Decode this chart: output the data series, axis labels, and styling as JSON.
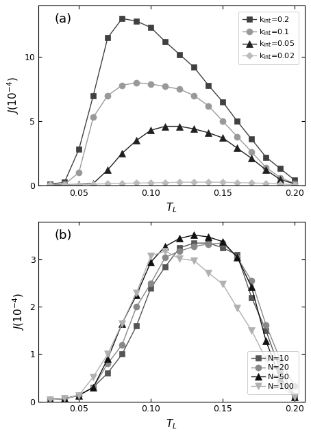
{
  "panel_a": {
    "title": "(a)",
    "series": [
      {
        "label": "k$_{\\rm int}$=0.2",
        "color": "#404040",
        "marker": "s",
        "markersize": 5.5,
        "linewidth": 1.0,
        "x": [
          0.03,
          0.04,
          0.05,
          0.06,
          0.07,
          0.08,
          0.09,
          0.1,
          0.11,
          0.12,
          0.13,
          0.14,
          0.15,
          0.16,
          0.17,
          0.18,
          0.19,
          0.2
        ],
        "y": [
          0.08,
          0.25,
          2.8,
          7.0,
          11.5,
          13.0,
          12.8,
          12.3,
          11.2,
          10.2,
          9.2,
          7.8,
          6.5,
          5.0,
          3.6,
          2.2,
          1.3,
          0.4
        ]
      },
      {
        "label": "k$_{\\rm int}$=0.1",
        "color": "#999999",
        "marker": "o",
        "markersize": 6.5,
        "linewidth": 1.0,
        "x": [
          0.03,
          0.04,
          0.05,
          0.06,
          0.07,
          0.08,
          0.09,
          0.1,
          0.11,
          0.12,
          0.13,
          0.14,
          0.15,
          0.16,
          0.17,
          0.18,
          0.19,
          0.2
        ],
        "y": [
          0.05,
          0.08,
          1.0,
          5.3,
          7.0,
          7.8,
          8.0,
          7.9,
          7.7,
          7.5,
          7.0,
          6.2,
          5.0,
          3.8,
          2.6,
          1.4,
          0.6,
          0.15
        ]
      },
      {
        "label": "k$_{\\rm int}$=0.05",
        "color": "#202020",
        "marker": "^",
        "markersize": 6.5,
        "linewidth": 1.0,
        "x": [
          0.03,
          0.04,
          0.05,
          0.06,
          0.07,
          0.08,
          0.09,
          0.1,
          0.11,
          0.12,
          0.13,
          0.14,
          0.15,
          0.16,
          0.17,
          0.18,
          0.19,
          0.2
        ],
        "y": [
          0.04,
          0.06,
          0.08,
          0.15,
          1.2,
          2.5,
          3.5,
          4.3,
          4.6,
          4.6,
          4.4,
          4.1,
          3.7,
          2.9,
          2.1,
          1.2,
          0.45,
          0.12
        ]
      },
      {
        "label": "k$_{\\rm int}$=0.02",
        "color": "#bbbbbb",
        "marker": "D",
        "markersize": 5.5,
        "linewidth": 1.0,
        "x": [
          0.03,
          0.04,
          0.05,
          0.06,
          0.07,
          0.08,
          0.09,
          0.1,
          0.11,
          0.12,
          0.13,
          0.14,
          0.15,
          0.16,
          0.17,
          0.18,
          0.19,
          0.2
        ],
        "y": [
          0.04,
          0.05,
          0.07,
          0.1,
          0.13,
          0.16,
          0.18,
          0.2,
          0.22,
          0.24,
          0.25,
          0.25,
          0.24,
          0.22,
          0.19,
          0.16,
          0.11,
          0.06
        ]
      }
    ],
    "ylim": [
      0,
      14
    ],
    "xlim": [
      0.022,
      0.207
    ],
    "yticks": [
      0,
      5,
      10
    ],
    "ytick_labels": [
      "0",
      "5",
      "10"
    ],
    "xticks": [
      0.05,
      0.1,
      0.15,
      0.2
    ],
    "xtick_labels": [
      "0.05",
      "0.10",
      "0.15",
      "0.20"
    ]
  },
  "panel_b": {
    "title": "(b)",
    "series": [
      {
        "label": "N=10",
        "color": "#555555",
        "marker": "s",
        "markersize": 5.5,
        "linewidth": 1.0,
        "x": [
          0.03,
          0.04,
          0.05,
          0.06,
          0.07,
          0.08,
          0.09,
          0.1,
          0.11,
          0.12,
          0.13,
          0.14,
          0.15,
          0.16,
          0.17,
          0.18,
          0.19,
          0.2
        ],
        "y": [
          0.04,
          0.06,
          0.13,
          0.3,
          0.6,
          1.0,
          1.6,
          2.4,
          2.85,
          3.25,
          3.35,
          3.35,
          3.25,
          3.1,
          2.2,
          1.5,
          0.65,
          0.13
        ]
      },
      {
        "label": "N=20",
        "color": "#888888",
        "marker": "o",
        "markersize": 6.5,
        "linewidth": 1.0,
        "x": [
          0.03,
          0.04,
          0.05,
          0.06,
          0.07,
          0.08,
          0.09,
          0.1,
          0.11,
          0.12,
          0.13,
          0.14,
          0.15,
          0.16,
          0.17,
          0.18,
          0.19,
          0.2
        ],
        "y": [
          0.04,
          0.06,
          0.13,
          0.3,
          0.8,
          1.2,
          2.0,
          2.5,
          3.05,
          3.18,
          3.28,
          3.33,
          3.35,
          3.05,
          2.55,
          1.62,
          0.88,
          0.32
        ]
      },
      {
        "label": "N=50",
        "color": "#111111",
        "marker": "^",
        "markersize": 6.5,
        "linewidth": 1.0,
        "x": [
          0.03,
          0.04,
          0.05,
          0.06,
          0.07,
          0.08,
          0.09,
          0.1,
          0.11,
          0.12,
          0.13,
          0.14,
          0.15,
          0.16,
          0.17,
          0.18,
          0.19,
          0.2
        ],
        "y": [
          0.04,
          0.06,
          0.13,
          0.3,
          0.9,
          1.65,
          2.25,
          2.95,
          3.28,
          3.45,
          3.52,
          3.48,
          3.38,
          3.05,
          2.42,
          1.28,
          0.48,
          0.09
        ]
      },
      {
        "label": "N=100",
        "color": "#b0b0b0",
        "marker": "v",
        "markersize": 6.5,
        "linewidth": 1.0,
        "x": [
          0.03,
          0.04,
          0.05,
          0.06,
          0.07,
          0.08,
          0.09,
          0.1,
          0.11,
          0.12,
          0.13,
          0.14,
          0.15,
          0.16,
          0.17,
          0.18,
          0.19,
          0.2
        ],
        "y": [
          0.04,
          0.06,
          0.13,
          0.52,
          1.0,
          1.65,
          2.3,
          3.08,
          3.18,
          3.02,
          2.98,
          2.72,
          2.48,
          1.98,
          1.5,
          0.9,
          0.33,
          0.09
        ]
      }
    ],
    "ylim": [
      0,
      3.8
    ],
    "xlim": [
      0.022,
      0.207
    ],
    "yticks": [
      0,
      1,
      2,
      3
    ],
    "ytick_labels": [
      "0",
      "1",
      "2",
      "3"
    ],
    "xticks": [
      0.05,
      0.1,
      0.15,
      0.2
    ],
    "xtick_labels": [
      "0.05",
      "0.10",
      "0.15",
      "0.20"
    ]
  },
  "xlabel": "$T_L$",
  "ylabel": "$J(10^{-4})$",
  "tick_fontsize": 9,
  "label_fontsize": 11,
  "legend_fontsize": 8,
  "panel_label_fontsize": 13
}
